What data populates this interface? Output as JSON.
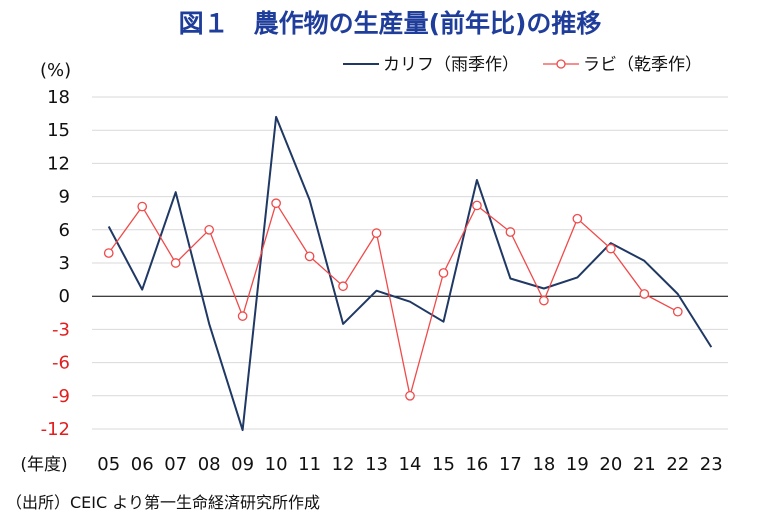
{
  "title": "図１　農作物の生産量(前年比)の推移",
  "source": "（出所）CEIC より第一生命経済研究所作成",
  "chart_data": {
    "type": "line",
    "ylabel": "(%)",
    "xlabel": "(年度)",
    "ylim": [
      -12,
      18
    ],
    "yticks": [
      18,
      15,
      12,
      9,
      6,
      3,
      0,
      -3,
      -6,
      -9,
      -12
    ],
    "categories": [
      "05",
      "06",
      "07",
      "08",
      "09",
      "10",
      "11",
      "12",
      "13",
      "14",
      "15",
      "16",
      "17",
      "18",
      "19",
      "20",
      "21",
      "22",
      "23"
    ],
    "legend_position": "top-right",
    "grid": "horizontal",
    "series": [
      {
        "name": "カリフ（雨季作）",
        "color": "#1f3864",
        "marker": "none",
        "values": [
          6.3,
          0.6,
          9.4,
          -2.5,
          -12.1,
          16.2,
          8.7,
          -2.5,
          0.5,
          -0.5,
          -2.3,
          10.5,
          1.6,
          0.7,
          1.7,
          4.8,
          3.2,
          0.2,
          -4.6
        ]
      },
      {
        "name": "ラビ（乾季作）",
        "color": "#f04a4a",
        "marker": "circle",
        "values": [
          3.9,
          8.1,
          3.0,
          6.0,
          -1.8,
          8.4,
          3.6,
          0.9,
          5.7,
          -9.0,
          2.1,
          8.2,
          5.8,
          -0.4,
          7.0,
          4.3,
          0.2,
          -1.4,
          null
        ]
      }
    ]
  }
}
